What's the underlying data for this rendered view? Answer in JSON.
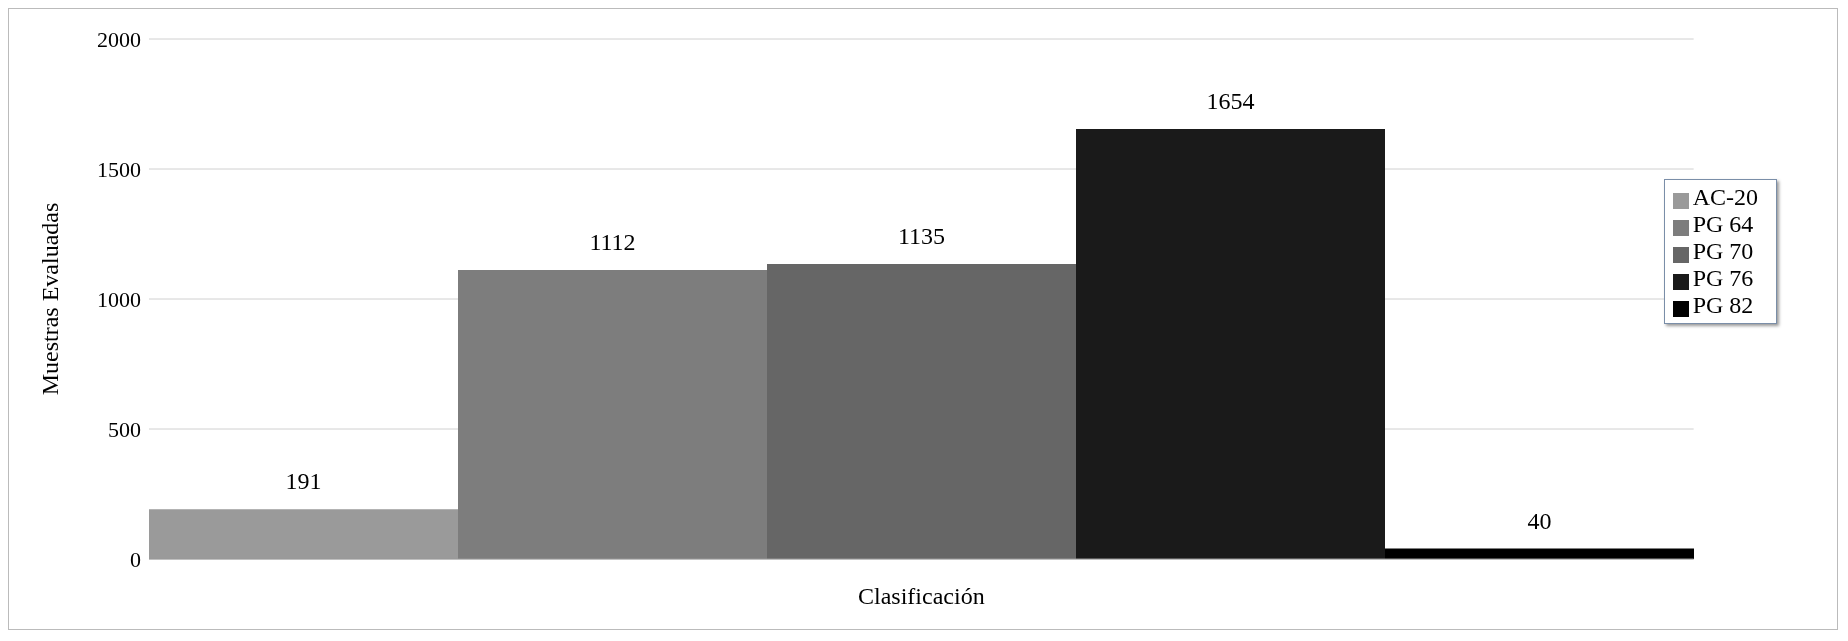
{
  "chart_data": {
    "type": "bar",
    "xlabel": "Clasificación",
    "ylabel": "Muestras Evaluadas",
    "categories": [
      null
    ],
    "series": [
      {
        "name": "AC-20",
        "color": "#9a9a9a",
        "values": [
          191
        ]
      },
      {
        "name": "PG 64",
        "color": "#7d7d7d",
        "values": [
          1112
        ]
      },
      {
        "name": "PG 70",
        "color": "#666666",
        "values": [
          1135
        ]
      },
      {
        "name": "PG 76",
        "color": "#1a1a1a",
        "values": [
          1654
        ]
      },
      {
        "name": "PG 82",
        "color": "#000000",
        "values": [
          40
        ]
      }
    ],
    "ylim": [
      0,
      2000
    ],
    "yticks": [
      0,
      500,
      1000,
      1500,
      2000
    ],
    "grid": "y",
    "legend": "right",
    "data_labels": true
  }
}
